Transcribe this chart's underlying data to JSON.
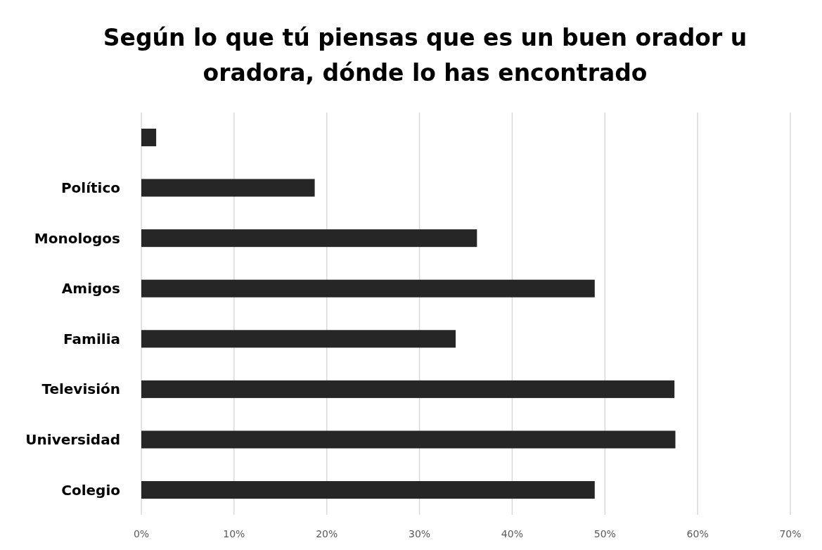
{
  "chart_data": {
    "type": "bar",
    "orientation": "horizontal",
    "title": "Según lo que tú piensas que es un buen orador u oradora, dónde lo has encontrado",
    "categories": [
      null,
      "Político",
      "Monologos",
      "Amigos",
      "Familia",
      "Televisión",
      "Universidad",
      "Colegio"
    ],
    "values": [
      1.6,
      18.7,
      36.2,
      48.9,
      33.9,
      57.5,
      57.6,
      48.9
    ],
    "color": "#262626",
    "xlim": [
      0,
      70
    ],
    "xticks": [
      {
        "value": 0,
        "label": "0%"
      },
      {
        "value": 10,
        "label": "10%"
      },
      {
        "value": 20,
        "label": "20%"
      },
      {
        "value": 30,
        "label": "30%"
      },
      {
        "value": 40,
        "label": "40%"
      },
      {
        "value": 50,
        "label": "50%"
      },
      {
        "value": 60,
        "label": "60%"
      },
      {
        "value": 70,
        "label": "70%"
      }
    ],
    "grid": "x"
  }
}
